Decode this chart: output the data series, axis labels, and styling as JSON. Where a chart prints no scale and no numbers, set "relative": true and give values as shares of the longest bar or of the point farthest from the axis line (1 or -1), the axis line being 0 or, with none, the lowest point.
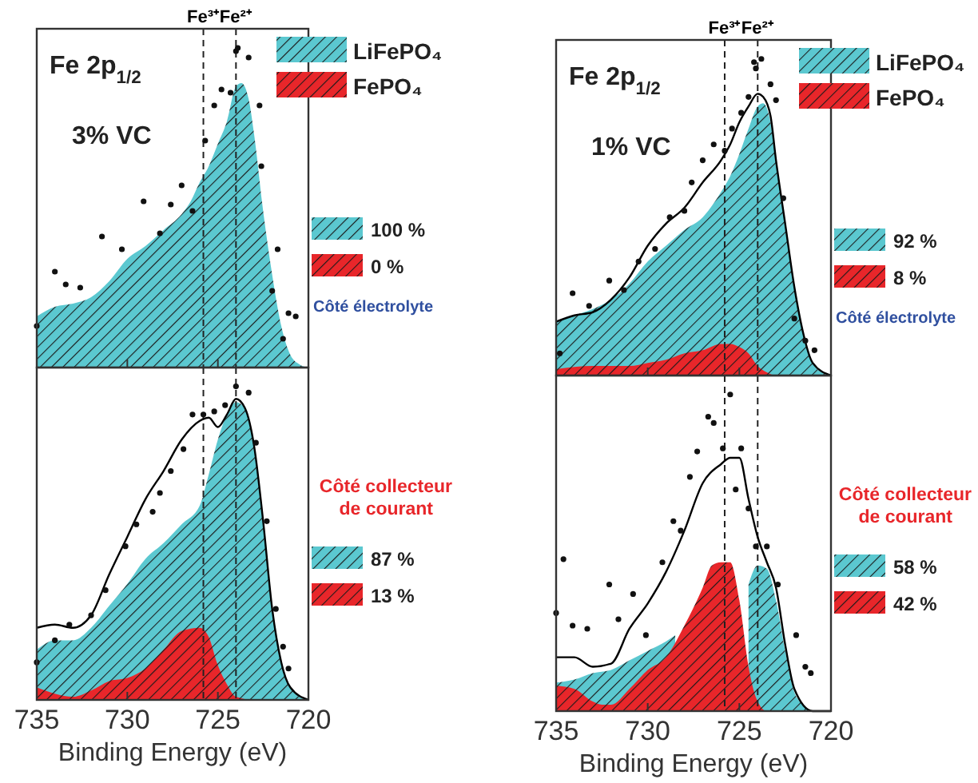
{
  "chart_data": [
    {
      "type": "area",
      "title": "Fe 2p$_{1/2}$",
      "relative": true,
      "xlim": [
        735,
        720
      ],
      "xticks": [
        735,
        730,
        725,
        720
      ],
      "tick_labels": false,
      "legend": "top right",
      "annotations": [
        "3% VC",
        "100 %",
        "0 %",
        "Côté électrolyte"
      ],
      "ref_lines": [
        {
          "axis": "x",
          "value": 725.8,
          "label": "Fe³⁺",
          "line_style": "dashed",
          "color": "#222222"
        },
        {
          "axis": "x",
          "value": 724,
          "label": "Fe²⁺",
          "line_style": "dashed",
          "color": "#222222"
        }
      ],
      "series": [
        {
          "name": "LiFePO₄",
          "color": "#5bc8d0",
          "x": [
            735,
            734,
            733,
            732,
            731,
            730,
            729,
            728,
            727,
            726.5,
            726,
            725.5,
            725,
            724.5,
            724,
            723.7,
            723.3,
            723,
            722.5,
            722,
            721.5,
            721,
            720.5,
            720
          ],
          "values": [
            0.16,
            0.19,
            0.2,
            0.22,
            0.27,
            0.34,
            0.38,
            0.43,
            0.48,
            0.52,
            0.58,
            0.63,
            0.7,
            0.77,
            0.88,
            0.89,
            0.84,
            0.73,
            0.49,
            0.29,
            0.13,
            0.04,
            0.01,
            0
          ]
        },
        {
          "name": "FePO₄",
          "color": "#e8262a"
        },
        {
          "type": "scatter",
          "marker": "circle",
          "color": "#111111",
          "x": [
            735,
            734,
            733.4,
            732.6,
            731.4,
            730.3,
            729.1,
            728.2,
            727.6,
            727,
            726.4,
            725.7,
            725.2,
            724.8,
            724.3,
            724,
            723.9,
            723.3,
            722.7,
            722.6,
            721.7,
            722,
            721.1,
            720.7,
            721.4
          ],
          "values": [
            0.13,
            0.3,
            0.26,
            0.25,
            0.41,
            0.37,
            0.52,
            0.42,
            0.51,
            0.57,
            0.49,
            0.71,
            0.82,
            0.87,
            0.86,
            0.99,
            1,
            0.97,
            0.82,
            0.63,
            0.37,
            0.24,
            0.17,
            0.16,
            0.09
          ]
        }
      ]
    },
    {
      "type": "area",
      "xlabel": "Binding Energy (eV)",
      "relative": true,
      "xlim": [
        735,
        720
      ],
      "xticks": [
        735,
        730,
        725,
        720
      ],
      "tick_labels": "x",
      "annotations": [
        "87 %",
        "13 %",
        "Côté collecteur de courant"
      ],
      "ref_lines": [
        {
          "axis": "x",
          "value": 725.8,
          "line_style": "dashed",
          "color": "#222222"
        },
        {
          "axis": "x",
          "value": 724,
          "line_style": "dashed",
          "color": "#222222"
        }
      ],
      "series": [
        {
          "color": "#5bc8d0",
          "x": [
            735,
            734,
            733,
            732,
            731,
            730,
            729,
            728,
            727,
            726,
            725.5,
            725,
            724.5,
            724,
            723.5,
            723,
            722.5,
            722,
            721.5,
            721,
            720.5,
            720
          ],
          "values": [
            0.16,
            0.19,
            0.19,
            0.23,
            0.3,
            0.37,
            0.45,
            0.5,
            0.56,
            0.62,
            0.72,
            0.83,
            0.91,
            0.95,
            0.93,
            0.81,
            0.57,
            0.29,
            0.12,
            0.04,
            0.01,
            0
          ]
        },
        {
          "color": "#e8262a",
          "x": [
            735,
            734,
            733,
            732,
            731,
            730,
            729,
            728,
            727,
            726,
            725.5,
            725,
            724.5,
            724,
            723,
            720
          ],
          "values": [
            0.04,
            0.02,
            0.01,
            0.03,
            0.06,
            0.07,
            0.1,
            0.16,
            0.22,
            0.23,
            0.2,
            0.11,
            0.05,
            0.01,
            0,
            0
          ]
        },
        {
          "type": "line",
          "color": "#000000",
          "x": [
            735,
            734,
            733,
            732,
            731,
            730,
            729,
            728,
            727,
            726,
            725.5,
            725,
            724.5,
            724,
            723.5,
            723,
            722.5,
            722,
            721.5,
            721,
            720
          ],
          "values": [
            0.23,
            0.24,
            0.23,
            0.27,
            0.4,
            0.52,
            0.64,
            0.73,
            0.83,
            0.89,
            0.9,
            0.87,
            0.91,
            0.96,
            0.93,
            0.81,
            0.57,
            0.29,
            0.12,
            0.04,
            0
          ]
        },
        {
          "type": "scatter",
          "marker": "circle",
          "color": "#111111",
          "x": [
            735,
            734,
            733.2,
            732,
            731.2,
            730.1,
            729.5,
            728.6,
            728.2,
            727.6,
            726.9,
            726.4,
            725.8,
            725.2,
            724.6,
            724,
            723.3,
            722.9,
            722.3,
            721.8,
            721.4,
            721.1
          ],
          "values": [
            0.12,
            0.19,
            0.24,
            0.27,
            0.35,
            0.49,
            0.56,
            0.6,
            0.66,
            0.73,
            0.8,
            0.91,
            0.91,
            0.92,
            0.94,
            1,
            0.98,
            0.82,
            0.57,
            0.29,
            0.17,
            0.1
          ]
        }
      ]
    },
    {
      "type": "area",
      "title": "Fe 2p$_{1/2}$",
      "relative": true,
      "xlim": [
        735,
        720
      ],
      "xticks": [
        735,
        730,
        725,
        720
      ],
      "tick_labels": false,
      "legend": "top right",
      "annotations": [
        "1% VC",
        "92 %",
        "8 %",
        "Côté électrolyte"
      ],
      "ref_lines": [
        {
          "axis": "x",
          "value": 725.8,
          "label": "Fe³⁺",
          "line_style": "dashed",
          "color": "#222222"
        },
        {
          "axis": "x",
          "value": 724,
          "label": "Fe²⁺",
          "line_style": "dashed",
          "color": "#222222"
        }
      ],
      "series": [
        {
          "name": "LiFePO₄",
          "color": "#5bc8d0",
          "x": [
            735,
            734,
            733,
            732,
            731,
            730,
            729,
            728,
            727,
            726,
            725.5,
            725,
            724.5,
            724,
            723.7,
            723.3,
            723,
            722.5,
            722,
            721.5,
            721,
            720.5,
            720
          ],
          "values": [
            0.17,
            0.19,
            0.21,
            0.24,
            0.29,
            0.36,
            0.41,
            0.46,
            0.5,
            0.58,
            0.63,
            0.7,
            0.78,
            0.85,
            0.86,
            0.8,
            0.68,
            0.48,
            0.28,
            0.13,
            0.04,
            0.01,
            0
          ]
        },
        {
          "name": "FePO₄",
          "color": "#e8262a",
          "x": [
            735,
            733,
            731,
            730,
            729,
            728,
            727,
            726,
            725.5,
            725,
            724.5,
            724,
            723.5,
            723,
            720
          ],
          "values": [
            0.02,
            0.03,
            0.03,
            0.04,
            0.05,
            0.07,
            0.08,
            0.1,
            0.1,
            0.09,
            0.07,
            0.03,
            0.01,
            0,
            0
          ]
        },
        {
          "type": "line",
          "color": "#000000",
          "x": [
            735,
            734,
            733,
            732,
            731,
            730,
            729,
            728,
            727,
            726,
            725.5,
            725,
            724.5,
            724,
            723.7,
            723.3,
            723,
            722.5,
            722,
            721.5,
            721,
            720
          ],
          "values": [
            0.17,
            0.19,
            0.2,
            0.24,
            0.31,
            0.41,
            0.48,
            0.53,
            0.61,
            0.68,
            0.73,
            0.8,
            0.85,
            0.89,
            0.88,
            0.82,
            0.68,
            0.48,
            0.28,
            0.13,
            0.04,
            0
          ]
        },
        {
          "type": "scatter",
          "marker": "circle",
          "color": "#111111",
          "x": [
            734.8,
            734.1,
            733.2,
            732.1,
            731.3,
            730.5,
            729.6,
            728.8,
            728,
            727.6,
            727,
            726.4,
            725.8,
            725.4,
            724.9,
            724.5,
            724.2,
            724.1,
            723.8,
            723.3,
            723,
            722.6,
            722,
            721.4,
            720.9
          ],
          "values": [
            0.07,
            0.26,
            0.22,
            0.3,
            0.27,
            0.36,
            0.4,
            0.5,
            0.52,
            0.61,
            0.68,
            0.73,
            0.71,
            0.78,
            0.83,
            0.88,
            0.99,
            0.97,
            1,
            0.92,
            0.87,
            0.56,
            0.18,
            0.11,
            0.08
          ]
        }
      ]
    },
    {
      "type": "area",
      "xlabel": "Binding Energy (eV)",
      "relative": true,
      "xlim": [
        735,
        720
      ],
      "xticks": [
        735,
        730,
        725,
        720
      ],
      "tick_labels": "x",
      "annotations": [
        "58 %",
        "42 %",
        "Côté collecteur de courant"
      ],
      "ref_lines": [
        {
          "axis": "x",
          "value": 725.8,
          "line_style": "dashed",
          "color": "#222222"
        },
        {
          "axis": "x",
          "value": 724,
          "line_style": "dashed",
          "color": "#222222"
        }
      ],
      "series": [
        {
          "color": "#5bc8d0",
          "x": [
            735,
            734,
            733,
            732,
            731,
            730,
            729,
            728.5,
            728,
            724.9,
            724.5,
            724,
            723.5,
            723,
            722.5,
            722,
            721.5,
            721,
            720
          ],
          "values": [
            0.09,
            0.1,
            0.12,
            0.13,
            0.16,
            0.19,
            0.22,
            0.24,
            null,
            null,
            0.4,
            0.46,
            0.45,
            0.35,
            0.19,
            0.06,
            0.02,
            0,
            0
          ]
        },
        {
          "color": "#e8262a",
          "x": [
            735,
            734,
            733,
            732.5,
            732,
            731,
            730,
            729,
            728,
            727,
            726.5,
            726,
            725.5,
            725,
            724.5,
            724,
            723.5,
            720
          ],
          "values": [
            0.08,
            0.07,
            0.03,
            0.02,
            0.02,
            0.07,
            0.13,
            0.17,
            0.27,
            0.39,
            0.46,
            0.47,
            0.47,
            0.35,
            0.14,
            0.03,
            0,
            0
          ]
        },
        {
          "type": "line",
          "color": "#000000",
          "x": [
            735,
            734,
            733,
            732,
            731,
            730,
            729,
            728,
            727,
            726,
            725.5,
            725,
            724.5,
            724,
            723.5,
            723,
            722.5,
            722,
            721,
            720
          ],
          "values": [
            0.17,
            0.17,
            0.14,
            0.15,
            0.26,
            0.34,
            0.44,
            0.57,
            0.72,
            0.78,
            0.8,
            0.8,
            0.67,
            0.55,
            0.47,
            0.39,
            0.21,
            0.07,
            0,
            0
          ]
        },
        {
          "type": "scatter",
          "marker": "circle",
          "color": "#111111",
          "x": [
            735,
            734.6,
            734.1,
            733.3,
            732.1,
            731.6,
            730.8,
            730.1,
            729.2,
            728.6,
            728.2,
            727.7,
            727.3,
            726.7,
            726.4,
            725.9,
            725.5,
            725.2,
            724.9,
            724.5,
            724.1,
            723.5,
            722.9,
            721.9,
            721.4,
            721.1
          ],
          "values": [
            0.31,
            0.48,
            0.27,
            0.26,
            0.4,
            0.29,
            0.37,
            0.24,
            0.47,
            0.6,
            0.57,
            0.74,
            0.82,
            0.93,
            0.91,
            0.83,
            1,
            0.7,
            0.83,
            0.64,
            0.52,
            0.52,
            0.4,
            0.24,
            0.14,
            0.12
          ]
        }
      ]
    }
  ]
}
